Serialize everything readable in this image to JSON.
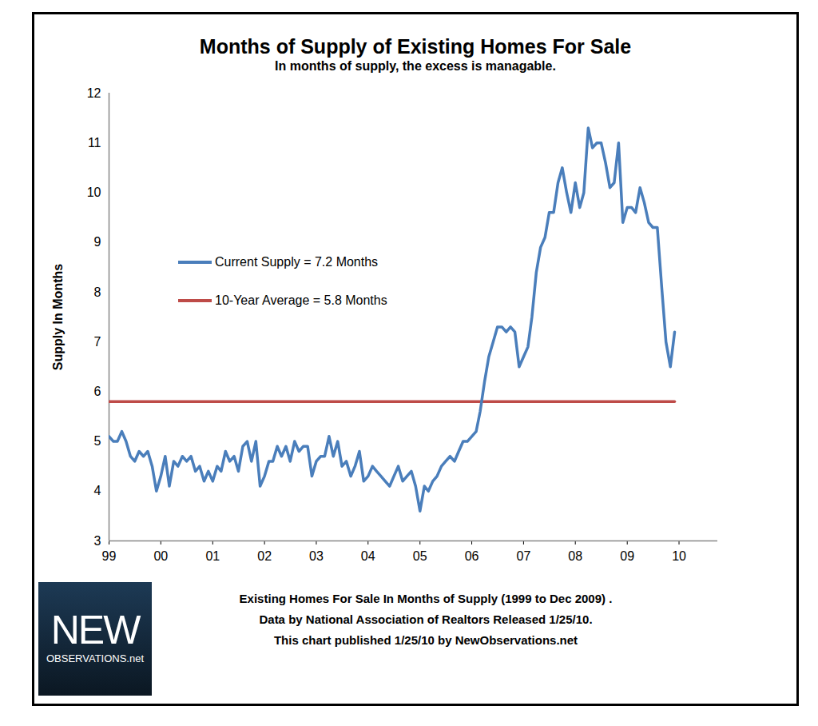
{
  "chart_data": {
    "type": "line",
    "title": "Months of Supply of Existing Homes For Sale",
    "subtitle": "In months of supply, the excess is managable.",
    "y_label": "Supply In Months",
    "caption": [
      "Existing Homes For Sale In Months of Supply (1999 to Dec 2009) .",
      "Data by National Association of Realtors Released 1/25/10.",
      "This chart published 1/25/10 by NewObservations.net"
    ],
    "logo": [
      "NEW",
      "OBSERVATIONS.net"
    ],
    "x": [
      "1999-01",
      "1999-02",
      "1999-03",
      "1999-04",
      "1999-05",
      "1999-06",
      "1999-07",
      "1999-08",
      "1999-09",
      "1999-10",
      "1999-11",
      "1999-12",
      "2000-01",
      "2000-02",
      "2000-03",
      "2000-04",
      "2000-05",
      "2000-06",
      "2000-07",
      "2000-08",
      "2000-09",
      "2000-10",
      "2000-11",
      "2000-12",
      "2001-01",
      "2001-02",
      "2001-03",
      "2001-04",
      "2001-05",
      "2001-06",
      "2001-07",
      "2001-08",
      "2001-09",
      "2001-10",
      "2001-11",
      "2001-12",
      "2002-01",
      "2002-02",
      "2002-03",
      "2002-04",
      "2002-05",
      "2002-06",
      "2002-07",
      "2002-08",
      "2002-09",
      "2002-10",
      "2002-11",
      "2002-12",
      "2003-01",
      "2003-02",
      "2003-03",
      "2003-04",
      "2003-05",
      "2003-06",
      "2003-07",
      "2003-08",
      "2003-09",
      "2003-10",
      "2003-11",
      "2003-12",
      "2004-01",
      "2004-02",
      "2004-03",
      "2004-04",
      "2004-05",
      "2004-06",
      "2004-07",
      "2004-08",
      "2004-09",
      "2004-10",
      "2004-11",
      "2004-12",
      "2005-01",
      "2005-02",
      "2005-03",
      "2005-04",
      "2005-05",
      "2005-06",
      "2005-07",
      "2005-08",
      "2005-09",
      "2005-10",
      "2005-11",
      "2005-12",
      "2006-01",
      "2006-02",
      "2006-03",
      "2006-04",
      "2006-05",
      "2006-06",
      "2006-07",
      "2006-08",
      "2006-09",
      "2006-10",
      "2006-11",
      "2006-12",
      "2007-01",
      "2007-02",
      "2007-03",
      "2007-04",
      "2007-05",
      "2007-06",
      "2007-07",
      "2007-08",
      "2007-09",
      "2007-10",
      "2007-11",
      "2007-12",
      "2008-01",
      "2008-02",
      "2008-03",
      "2008-04",
      "2008-05",
      "2008-06",
      "2008-07",
      "2008-08",
      "2008-09",
      "2008-10",
      "2008-11",
      "2008-12",
      "2009-01",
      "2009-02",
      "2009-03",
      "2009-04",
      "2009-05",
      "2009-06",
      "2009-07",
      "2009-08",
      "2009-09",
      "2009-10",
      "2009-11",
      "2009-12"
    ],
    "series": [
      {
        "name": "Current Supply = 7.2 Months",
        "color": "#4a7ebb",
        "values": [
          5.1,
          5.0,
          5.0,
          5.2,
          5.0,
          4.7,
          4.6,
          4.8,
          4.7,
          4.8,
          4.5,
          4.0,
          4.3,
          4.7,
          4.1,
          4.6,
          4.5,
          4.7,
          4.6,
          4.7,
          4.4,
          4.5,
          4.2,
          4.4,
          4.2,
          4.5,
          4.4,
          4.8,
          4.6,
          4.7,
          4.4,
          4.9,
          5.0,
          4.6,
          5.0,
          4.1,
          4.3,
          4.6,
          4.6,
          4.9,
          4.7,
          4.9,
          4.6,
          5.0,
          4.8,
          4.9,
          4.9,
          4.3,
          4.6,
          4.7,
          4.7,
          5.1,
          4.7,
          5.0,
          4.5,
          4.6,
          4.3,
          4.5,
          4.8,
          4.2,
          4.3,
          4.5,
          4.4,
          4.3,
          4.2,
          4.1,
          4.3,
          4.5,
          4.2,
          4.3,
          4.4,
          4.1,
          3.6,
          4.1,
          4.0,
          4.2,
          4.3,
          4.5,
          4.6,
          4.7,
          4.6,
          4.8,
          5.0,
          5.0,
          5.1,
          5.2,
          5.6,
          6.2,
          6.7,
          7.0,
          7.3,
          7.3,
          7.2,
          7.3,
          7.2,
          6.5,
          6.7,
          6.9,
          7.5,
          8.4,
          8.9,
          9.1,
          9.6,
          9.6,
          10.2,
          10.5,
          10.0,
          9.6,
          10.2,
          9.7,
          10.0,
          11.3,
          10.9,
          11.0,
          11.0,
          10.6,
          10.1,
          10.2,
          11.0,
          9.4,
          9.7,
          9.7,
          9.6,
          10.1,
          9.8,
          9.4,
          9.3,
          9.3,
          8.1,
          7.0,
          6.5,
          7.2
        ]
      },
      {
        "name": "10-Year Average = 5.8 Months",
        "color": "#be4b48",
        "values": [
          5.8,
          5.8,
          5.8,
          5.8,
          5.8,
          5.8,
          5.8,
          5.8,
          5.8,
          5.8,
          5.8,
          5.8,
          5.8,
          5.8,
          5.8,
          5.8,
          5.8,
          5.8,
          5.8,
          5.8,
          5.8,
          5.8,
          5.8,
          5.8,
          5.8,
          5.8,
          5.8,
          5.8,
          5.8,
          5.8,
          5.8,
          5.8,
          5.8,
          5.8,
          5.8,
          5.8,
          5.8,
          5.8,
          5.8,
          5.8,
          5.8,
          5.8,
          5.8,
          5.8,
          5.8,
          5.8,
          5.8,
          5.8,
          5.8,
          5.8,
          5.8,
          5.8,
          5.8,
          5.8,
          5.8,
          5.8,
          5.8,
          5.8,
          5.8,
          5.8,
          5.8,
          5.8,
          5.8,
          5.8,
          5.8,
          5.8,
          5.8,
          5.8,
          5.8,
          5.8,
          5.8,
          5.8,
          5.8,
          5.8,
          5.8,
          5.8,
          5.8,
          5.8,
          5.8,
          5.8,
          5.8,
          5.8,
          5.8,
          5.8,
          5.8,
          5.8,
          5.8,
          5.8,
          5.8,
          5.8,
          5.8,
          5.8,
          5.8,
          5.8,
          5.8,
          5.8,
          5.8,
          5.8,
          5.8,
          5.8,
          5.8,
          5.8,
          5.8,
          5.8,
          5.8,
          5.8,
          5.8,
          5.8,
          5.8,
          5.8,
          5.8,
          5.8,
          5.8,
          5.8,
          5.8,
          5.8,
          5.8,
          5.8,
          5.8,
          5.8,
          5.8,
          5.8,
          5.8,
          5.8,
          5.8,
          5.8,
          5.8,
          5.8,
          5.8,
          5.8,
          5.8,
          5.8
        ]
      }
    ],
    "xlim": [
      "1999-01",
      "2010-10"
    ],
    "xticks": [
      {
        "value": "1999-01",
        "label": "99"
      },
      {
        "value": "2000-01",
        "label": "00"
      },
      {
        "value": "2001-01",
        "label": "01"
      },
      {
        "value": "2002-01",
        "label": "02"
      },
      {
        "value": "2003-01",
        "label": "03"
      },
      {
        "value": "2004-01",
        "label": "04"
      },
      {
        "value": "2005-01",
        "label": "05"
      },
      {
        "value": "2006-01",
        "label": "06"
      },
      {
        "value": "2007-01",
        "label": "07"
      },
      {
        "value": "2008-01",
        "label": "08"
      },
      {
        "value": "2009-01",
        "label": "09"
      },
      {
        "value": "2010-01",
        "label": "10"
      }
    ],
    "ylim": [
      3,
      12
    ],
    "yticks": [
      3,
      4,
      5,
      6,
      7,
      8,
      9,
      10,
      11,
      12
    ],
    "grid": false,
    "legend": "left"
  }
}
